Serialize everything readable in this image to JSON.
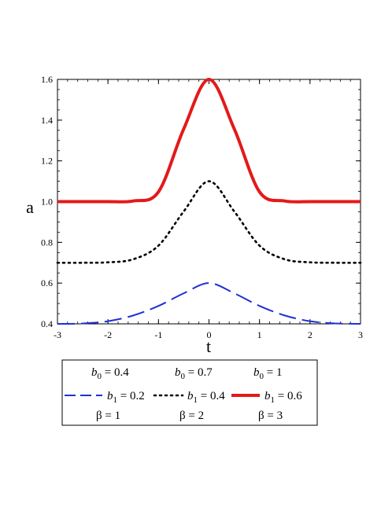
{
  "chart_data": {
    "type": "line",
    "xlabel": "t",
    "ylabel": "a",
    "xlim": [
      -3,
      3
    ],
    "ylim": [
      0.4,
      1.6
    ],
    "x_ticks": [
      "-3",
      "-2",
      "-1",
      "0",
      "1",
      "2",
      "3"
    ],
    "y_ticks": [
      "0.4",
      "0.6",
      "0.8",
      "1.0",
      "1.2",
      "1.4",
      "1.6"
    ],
    "grid": false,
    "legend_position": "bottom",
    "series": [
      {
        "b0": "0.4",
        "b1": "0.2",
        "beta": "1",
        "color": "#1f2fd6",
        "style": "dashed",
        "x": [
          -3,
          -2.5,
          -2,
          -1.5,
          -1,
          -0.5,
          0,
          0.5,
          1,
          1.5,
          2,
          2.5,
          3
        ],
        "y": [
          0.4,
          0.402,
          0.413,
          0.441,
          0.488,
          0.55,
          0.6,
          0.55,
          0.488,
          0.441,
          0.413,
          0.402,
          0.4
        ]
      },
      {
        "b0": "0.7",
        "b1": "0.4",
        "beta": "2",
        "color": "#000000",
        "style": "dotted",
        "x": [
          -3,
          -2.5,
          -2,
          -1.5,
          -1,
          -0.5,
          0,
          0.5,
          1,
          1.5,
          2,
          2.5,
          3
        ],
        "y": [
          0.7,
          0.7,
          0.702,
          0.717,
          0.784,
          0.952,
          1.1,
          0.952,
          0.784,
          0.717,
          0.702,
          0.7,
          0.7
        ]
      },
      {
        "b0": "1",
        "b1": "0.6",
        "beta": "3",
        "color": "#e31a1a",
        "style": "solid",
        "x": [
          -3,
          -2.5,
          -2,
          -1.5,
          -1,
          -0.5,
          0,
          0.5,
          1,
          1.5,
          2,
          2.5,
          3
        ],
        "y": [
          1.0,
          1.0,
          1.0,
          1.003,
          1.048,
          1.357,
          1.6,
          1.357,
          1.048,
          1.003,
          1.0,
          1.0,
          1.0
        ]
      }
    ],
    "legend": {
      "b0_prefix": "b",
      "b0_sub": "0",
      "b1_prefix": "b",
      "b1_sub": "1",
      "beta_prefix": "β"
    }
  }
}
